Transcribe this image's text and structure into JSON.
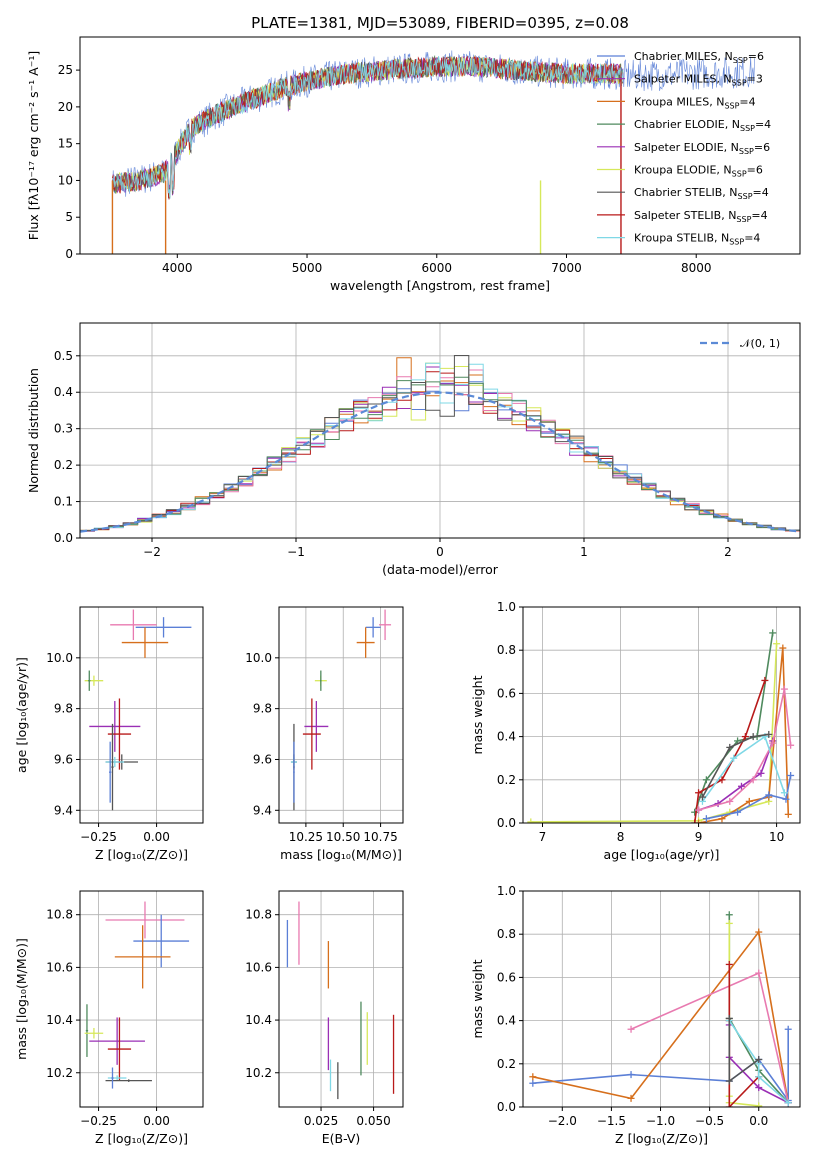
{
  "colors": {
    "Chabrier MILES": "#5b7fd6",
    "Salpeter MILES": "#9a2fb5",
    "Kroupa MILES": "#d66f1c",
    "Chabrier ELODIE": "#4f8a5e",
    "Salpeter ELODIE": "#9a2fb5",
    "Kroupa ELODIE": "#d6e85a",
    "Chabrier STELIB": "#555555",
    "Salpeter STELIB": "#b81a1a",
    "Kroupa STELIB": "#7fd8e6",
    "pink": "#e87ab0",
    "normal": "#5b8ad6"
  },
  "chart_data": [
    {
      "id": "spectrum",
      "type": "line",
      "title": "PLATE=1381, MJD=53089, FIBERID=0395, z=0.08",
      "xlabel": "wavelength [Angstrom, rest frame]",
      "ylabel": "Flux [fλ10⁻¹⁷ erg cm⁻² s⁻¹ A⁻¹]",
      "xlim": [
        3250,
        8800
      ],
      "ylim": [
        0,
        29.5
      ],
      "xticks": [
        4000,
        5000,
        6000,
        7000,
        8000
      ],
      "yticks": [
        0,
        5,
        10,
        15,
        20,
        25
      ],
      "continuum_x": [
        3500,
        3700,
        3900,
        4000,
        4100,
        4300,
        4500,
        4800,
        5000,
        5300,
        5600,
        6000,
        6300,
        6600,
        7000,
        7400
      ],
      "continuum_y": [
        9.5,
        10,
        11,
        14,
        17,
        19,
        20.5,
        22.5,
        23.5,
        24.5,
        25,
        25.5,
        25.5,
        25,
        24.5,
        24.5
      ],
      "drops_x": [
        3500,
        3910,
        6800,
        7420
      ],
      "legend_placement": "upper-right",
      "legend": [
        {
          "name": "Chabrier MILES, N",
          "sub": "SSP",
          "post": "=6"
        },
        {
          "name": "Salpeter MILES, N",
          "sub": "SSP",
          "post": "=3"
        },
        {
          "name": "Kroupa MILES, N",
          "sub": "SSP",
          "post": "=4"
        },
        {
          "name": "Chabrier ELODIE, N",
          "sub": "SSP",
          "post": "=4"
        },
        {
          "name": "Salpeter ELODIE, N",
          "sub": "SSP",
          "post": "=6"
        },
        {
          "name": "Kroupa ELODIE, N",
          "sub": "SSP",
          "post": "=6"
        },
        {
          "name": "Chabrier STELIB, N",
          "sub": "SSP",
          "post": "=4"
        },
        {
          "name": "Salpeter STELIB, N",
          "sub": "SSP",
          "post": "=4"
        },
        {
          "name": "Kroupa STELIB, N",
          "sub": "SSP",
          "post": "=4"
        }
      ]
    },
    {
      "id": "residuals",
      "type": "step",
      "xlabel": "(data-model)/error",
      "ylabel": "Normed distribution",
      "xlim": [
        -2.5,
        2.5
      ],
      "ylim": [
        0,
        0.59
      ],
      "xticks": [
        -2,
        -1,
        0,
        1,
        2
      ],
      "yticks": [
        0.0,
        0.1,
        0.2,
        0.3,
        0.4,
        0.5
      ],
      "bin_width": 0.1,
      "legend": "𝒩(0, 1)",
      "bumps": [
        0.55,
        0.53,
        0.5,
        0.47,
        0.44,
        0.42,
        0.4,
        0.39
      ],
      "dips": [
        0.3,
        0.32,
        0.33,
        0.35,
        0.37,
        0.38,
        0.4,
        0.42
      ]
    },
    {
      "id": "age_Z",
      "type": "errorbar",
      "xlabel": "Z [log₁₀(Z/Z⊙)]",
      "ylabel": "age  [log₁₀(age/yr)]",
      "xlim": [
        -0.33,
        0.2
      ],
      "ylim": [
        9.35,
        10.2
      ],
      "xticks": [
        -0.25,
        0.0
      ],
      "xticklabels": [
        "−0.25",
        "0.00"
      ],
      "yticks": [
        9.4,
        9.6,
        9.8,
        10.0
      ],
      "points": [
        {
          "c": "pink",
          "x": -0.1,
          "xe": 0.1,
          "y": 10.13,
          "ye": 0.06
        },
        {
          "c": "Chabrier MILES",
          "x": 0.03,
          "xe": 0.12,
          "y": 10.12,
          "ye": 0.04
        },
        {
          "c": "Kroupa MILES",
          "x": -0.05,
          "xe": 0.1,
          "y": 10.06,
          "ye": 0.06
        },
        {
          "c": "Kroupa ELODIE",
          "x": -0.27,
          "xe": 0.04,
          "y": 9.91,
          "ye": 0.02
        },
        {
          "c": "Chabrier ELODIE",
          "x": -0.29,
          "xe": 0.005,
          "y": 9.91,
          "ye": 0.04
        },
        {
          "c": "Salpeter ELODIE",
          "x": -0.18,
          "xe": 0.11,
          "y": 9.73,
          "ye": 0.1
        },
        {
          "c": "Salpeter STELIB",
          "x": -0.16,
          "xe": 0.05,
          "y": 9.7,
          "ye": 0.14
        },
        {
          "c": "Chabrier STELIB",
          "x": -0.15,
          "xe": 0.07,
          "y": 9.59,
          "ye": 0.03
        },
        {
          "c": "Kroupa STELIB",
          "x": -0.18,
          "xe": 0.04,
          "y": 9.59,
          "ye": 0.02
        },
        {
          "c": "Chabrier STELIB",
          "x": -0.19,
          "xe": 0.005,
          "y": 9.57,
          "ye": 0.17
        },
        {
          "c": "Chabrier MILES",
          "x": -0.2,
          "xe": 0.005,
          "y": 9.55,
          "ye": 0.12
        }
      ]
    },
    {
      "id": "age_mass",
      "type": "errorbar",
      "xlabel": "mass [log₁₀(M/M⊙)]",
      "ylabel": "",
      "xlim": [
        10.07,
        10.9
      ],
      "ylim": [
        9.35,
        10.2
      ],
      "xticks": [
        10.25,
        10.5,
        10.75
      ],
      "xticklabels": [
        "10.25",
        "10.50",
        "10.75"
      ],
      "yticks": [
        9.4,
        9.6,
        9.8,
        10.0
      ],
      "points": [
        {
          "c": "pink",
          "x": 10.78,
          "xe": 0.04,
          "y": 10.13,
          "ye": 0.06
        },
        {
          "c": "Chabrier MILES",
          "x": 10.7,
          "xe": 0.05,
          "y": 10.12,
          "ye": 0.04
        },
        {
          "c": "Kroupa MILES",
          "x": 10.65,
          "xe": 0.06,
          "y": 10.06,
          "ye": 0.06
        },
        {
          "c": "Kroupa ELODIE",
          "x": 10.35,
          "xe": 0.04,
          "y": 9.91,
          "ye": 0.02
        },
        {
          "c": "Chabrier ELODIE",
          "x": 10.35,
          "xe": 0.005,
          "y": 9.91,
          "ye": 0.04
        },
        {
          "c": "Salpeter ELODIE",
          "x": 10.32,
          "xe": 0.08,
          "y": 9.73,
          "ye": 0.1
        },
        {
          "c": "Salpeter STELIB",
          "x": 10.29,
          "xe": 0.06,
          "y": 9.7,
          "ye": 0.14
        },
        {
          "c": "Chabrier STELIB",
          "x": 10.17,
          "xe": 0.02,
          "y": 9.59,
          "ye": 0.03
        },
        {
          "c": "Kroupa STELIB",
          "x": 10.17,
          "xe": 0.02,
          "y": 9.59,
          "ye": 0.02
        },
        {
          "c": "Chabrier STELIB",
          "x": 10.17,
          "xe": 0.005,
          "y": 9.57,
          "ye": 0.17
        },
        {
          "c": "Chabrier MILES",
          "x": 10.17,
          "xe": 0.005,
          "y": 9.55,
          "ye": 0.12
        }
      ]
    },
    {
      "id": "weight_age",
      "type": "line",
      "xlabel": "age  [log₁₀(age/yr)]",
      "ylabel": "mass weight",
      "xlim": [
        6.75,
        10.3
      ],
      "ylim": [
        0,
        1.0
      ],
      "xticks": [
        7,
        8,
        9,
        10
      ],
      "yticks": [
        0.0,
        0.2,
        0.4,
        0.6,
        0.8,
        1.0
      ],
      "series": [
        {
          "c": "Kroupa ELODIE",
          "x": [
            6.85,
            9.0,
            9.4,
            9.9,
            10.0
          ],
          "y": [
            0.005,
            0.01,
            0.05,
            0.1,
            0.83
          ]
        },
        {
          "c": "Chabrier ELODIE",
          "x": [
            8.95,
            9.1,
            9.5,
            9.75,
            9.95
          ],
          "y": [
            0.05,
            0.2,
            0.38,
            0.4,
            0.88
          ]
        },
        {
          "c": "Salpeter STELIB",
          "x": [
            8.95,
            9.0,
            9.3,
            9.6,
            9.85
          ],
          "y": [
            0.0,
            0.14,
            0.2,
            0.4,
            0.66
          ]
        },
        {
          "c": "Salpeter ELODIE",
          "x": [
            9.0,
            9.25,
            9.55,
            9.8,
            9.95
          ],
          "y": [
            0.06,
            0.09,
            0.17,
            0.23,
            0.38
          ]
        },
        {
          "c": "Kroupa MILES",
          "x": [
            9.0,
            9.3,
            9.65,
            9.9,
            10.08,
            10.15
          ],
          "y": [
            0.0,
            0.02,
            0.1,
            0.12,
            0.81,
            0.04
          ]
        },
        {
          "c": "pink",
          "x": [
            9.0,
            9.4,
            9.7,
            9.95,
            10.1,
            10.18
          ],
          "y": [
            0.06,
            0.1,
            0.2,
            0.37,
            0.62,
            0.36
          ]
        },
        {
          "c": "Chabrier MILES",
          "x": [
            9.1,
            9.5,
            9.9,
            10.12,
            10.18
          ],
          "y": [
            0.02,
            0.05,
            0.13,
            0.11,
            0.22
          ]
        },
        {
          "c": "Kroupa STELIB",
          "x": [
            9.05,
            9.45,
            9.85,
            10.1
          ],
          "y": [
            0.1,
            0.3,
            0.4,
            0.14
          ]
        },
        {
          "c": "Chabrier STELIB",
          "x": [
            9.05,
            9.4,
            9.7,
            9.9
          ],
          "y": [
            0.12,
            0.35,
            0.4,
            0.41
          ]
        }
      ]
    },
    {
      "id": "mass_Z",
      "type": "errorbar",
      "xlabel": "Z [log₁₀(Z/Z⊙)]",
      "ylabel": "mass [log₁₀(M/M⊙)]",
      "xlim": [
        -0.33,
        0.2
      ],
      "ylim": [
        10.07,
        10.89
      ],
      "xticks": [
        -0.25,
        0.0
      ],
      "xticklabels": [
        "−0.25",
        "0.00"
      ],
      "yticks": [
        10.2,
        10.4,
        10.6,
        10.8
      ],
      "points": [
        {
          "c": "pink",
          "x": -0.05,
          "xe": 0.17,
          "y": 10.78,
          "ye": 0.07
        },
        {
          "c": "Chabrier MILES",
          "x": 0.02,
          "xe": 0.12,
          "y": 10.7,
          "ye": 0.1
        },
        {
          "c": "Kroupa MILES",
          "x": -0.06,
          "xe": 0.12,
          "y": 10.64,
          "ye": 0.12
        },
        {
          "c": "Chabrier ELODIE",
          "x": -0.3,
          "xe": 0.005,
          "y": 10.36,
          "ye": 0.1
        },
        {
          "c": "Kroupa ELODIE",
          "x": -0.27,
          "xe": 0.04,
          "y": 10.35,
          "ye": 0.02
        },
        {
          "c": "Salpeter ELODIE",
          "x": -0.17,
          "xe": 0.12,
          "y": 10.32,
          "ye": 0.09
        },
        {
          "c": "Salpeter STELIB",
          "x": -0.16,
          "xe": 0.05,
          "y": 10.29,
          "ye": 0.12
        },
        {
          "c": "Kroupa STELIB",
          "x": -0.17,
          "xe": 0.04,
          "y": 10.18,
          "ye": 0.01
        },
        {
          "c": "Chabrier STELIB",
          "x": -0.12,
          "xe": 0.1,
          "y": 10.17,
          "ye": 0.005
        },
        {
          "c": "Chabrier MILES",
          "x": -0.19,
          "xe": 0.005,
          "y": 10.18,
          "ye": 0.04
        }
      ]
    },
    {
      "id": "mass_EBV",
      "type": "errorbar",
      "xlabel": "E(B-V)",
      "ylabel": "",
      "xlim": [
        0.005,
        0.064
      ],
      "ylim": [
        10.07,
        10.89
      ],
      "xticks": [
        0.025,
        0.05
      ],
      "xticklabels": [
        "0.025",
        "0.050"
      ],
      "yticks": [
        10.2,
        10.4,
        10.6,
        10.8
      ],
      "points": [
        {
          "c": "Chabrier MILES",
          "x": 0.009,
          "xe": 0,
          "y": 10.69,
          "ye": 0.09
        },
        {
          "c": "pink",
          "x": 0.0145,
          "xe": 0,
          "y": 10.73,
          "ye": 0.12
        },
        {
          "c": "Kroupa MILES",
          "x": 0.0285,
          "xe": 0,
          "y": 10.61,
          "ye": 0.09
        },
        {
          "c": "Salpeter ELODIE",
          "x": 0.0285,
          "xe": 0,
          "y": 10.31,
          "ye": 0.1
        },
        {
          "c": "Kroupa STELIB",
          "x": 0.0295,
          "xe": 0,
          "y": 10.19,
          "ye": 0.06
        },
        {
          "c": "Chabrier STELIB",
          "x": 0.033,
          "xe": 0,
          "y": 10.17,
          "ye": 0.07
        },
        {
          "c": "Chabrier ELODIE",
          "x": 0.044,
          "xe": 0,
          "y": 10.33,
          "ye": 0.14
        },
        {
          "c": "Kroupa ELODIE",
          "x": 0.047,
          "xe": 0,
          "y": 10.33,
          "ye": 0.1
        },
        {
          "c": "Salpeter STELIB",
          "x": 0.0595,
          "xe": 0,
          "y": 10.27,
          "ye": 0.15
        }
      ]
    },
    {
      "id": "weight_Z",
      "type": "line",
      "xlabel": "Z [log₁₀(Z/Z⊙)]",
      "ylabel": "mass weight",
      "xlim": [
        -2.4,
        0.42
      ],
      "ylim": [
        0,
        1.0
      ],
      "xticks": [
        -2.0,
        -1.5,
        -1.0,
        -0.5,
        0.0
      ],
      "xticklabels": [
        "−2.0",
        "−1.5",
        "−1.0",
        "−0.5",
        "0.0"
      ],
      "yticks": [
        0.0,
        0.2,
        0.4,
        0.6,
        0.8,
        1.0
      ],
      "series": [
        {
          "c": "Chabrier MILES",
          "x": [
            -2.3,
            -1.3,
            -0.3,
            0.0,
            0.3,
            0.3,
            0.3
          ],
          "y": [
            0.11,
            0.15,
            0.12,
            0.22,
            0.03,
            0.36,
            0.02
          ]
        },
        {
          "c": "Kroupa MILES",
          "x": [
            -2.3,
            -1.3,
            0.0,
            0.3
          ],
          "y": [
            0.14,
            0.04,
            0.81,
            0.02
          ]
        },
        {
          "c": "pink",
          "x": [
            -1.3,
            0.0,
            0.3
          ],
          "y": [
            0.36,
            0.62,
            0.02
          ]
        },
        {
          "c": "Chabrier ELODIE",
          "x": [
            -0.3,
            -0.3,
            0.0,
            0.3
          ],
          "y": [
            0.89,
            0.41,
            0.17,
            0.02
          ]
        },
        {
          "c": "Kroupa ELODIE",
          "x": [
            -0.3,
            -0.3,
            -0.3,
            0.0
          ],
          "y": [
            0.85,
            0.05,
            0.02,
            0.005
          ]
        },
        {
          "c": "Salpeter ELODIE",
          "x": [
            -0.3,
            -0.3,
            0.0,
            0.3
          ],
          "y": [
            0.38,
            0.23,
            0.09,
            0.02
          ]
        },
        {
          "c": "Salpeter STELIB",
          "x": [
            -0.3,
            -0.3,
            -0.3,
            0.0,
            0.0
          ],
          "y": [
            0.66,
            0.4,
            0.0,
            0.14,
            0.2
          ]
        },
        {
          "c": "Kroupa STELIB",
          "x": [
            -0.3,
            0.0,
            0.0,
            0.3
          ],
          "y": [
            0.4,
            0.2,
            0.14,
            0.02
          ]
        },
        {
          "c": "Chabrier STELIB",
          "x": [
            -0.3,
            -0.3,
            0.0
          ],
          "y": [
            0.41,
            0.12,
            0.22
          ]
        }
      ]
    }
  ]
}
